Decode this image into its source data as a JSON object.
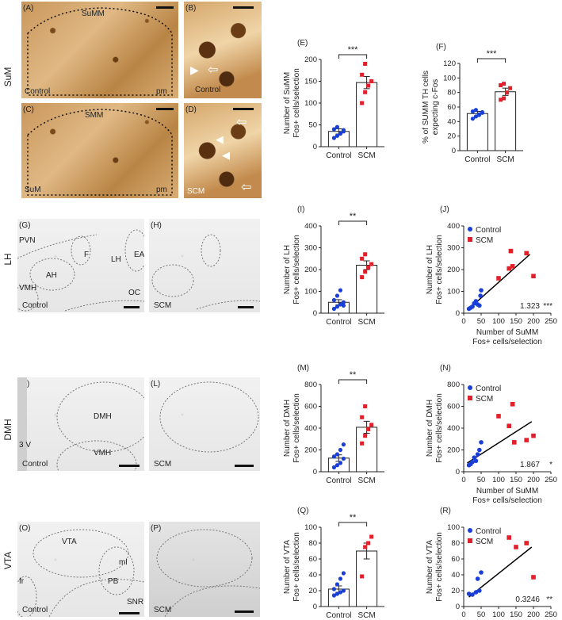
{
  "row_labels": {
    "suM": "SuM",
    "lh": "LH",
    "dmh": "DMH",
    "vta": "VTA"
  },
  "images": {
    "A": {
      "letter": "(A)",
      "labels": [
        "SuMM",
        "Control",
        "pm"
      ]
    },
    "B": {
      "letter": "(B)",
      "labels": [
        "Control"
      ]
    },
    "C": {
      "letter": "(C)",
      "labels": [
        "SMM",
        "SuM",
        "pm"
      ]
    },
    "D": {
      "letter": "(D)",
      "labels": [
        "SCM"
      ]
    },
    "G": {
      "letter": "(G)",
      "labels": [
        "PVN",
        "F",
        "LH",
        "EA",
        "AH",
        "VMH",
        "OC",
        "Control"
      ]
    },
    "H": {
      "letter": "(H)",
      "labels": [
        "SCM"
      ]
    },
    "K": {
      "letter": "(K)",
      "labels": [
        "DMH",
        "3 V",
        "VMH",
        "Control"
      ]
    },
    "L": {
      "letter": "(L)",
      "labels": [
        "SCM"
      ]
    },
    "O": {
      "letter": "(O)",
      "labels": [
        "VTA",
        "ml",
        "PB",
        "fr",
        "SNR",
        "Control"
      ]
    },
    "P": {
      "letter": "(P)",
      "labels": [
        "SCM"
      ]
    }
  },
  "colors": {
    "control": "#1a3fd6",
    "scm": "#e0202a",
    "line": "#000000"
  },
  "chart_data": [
    {
      "id": "E",
      "letter": "(E)",
      "type": "bar",
      "categories": [
        "Control",
        "SCM"
      ],
      "ylabel": [
        "Number of SuMM",
        "Fos+ cells/selection"
      ],
      "ylim": [
        0,
        200
      ],
      "yticks": [
        0,
        50,
        100,
        150,
        200
      ],
      "means": [
        35,
        147
      ],
      "sem": [
        6,
        14
      ],
      "sig": "***",
      "points": [
        [
          20,
          25,
          30,
          35,
          40,
          45,
          30,
          38
        ],
        [
          100,
          125,
          140,
          150,
          165,
          190
        ]
      ]
    },
    {
      "id": "F",
      "letter": "(F)",
      "type": "bar",
      "categories": [
        "Control",
        "SCM"
      ],
      "ylabel": [
        "% of SUMM TH cells",
        "expecting c-Fos"
      ],
      "ylim": [
        0,
        120
      ],
      "yticks": [
        0,
        20,
        40,
        60,
        80,
        100,
        120
      ],
      "means": [
        51,
        81
      ],
      "sem": [
        3,
        5
      ],
      "sig": "***",
      "points": [
        [
          44,
          47,
          50,
          52,
          54,
          56,
          49,
          53
        ],
        [
          70,
          72,
          80,
          86,
          90,
          92
        ]
      ]
    },
    {
      "id": "I",
      "letter": "(I)",
      "type": "bar",
      "categories": [
        "Control",
        "SCM"
      ],
      "ylabel": [
        "Number of LH",
        "Fos+ cells/selection"
      ],
      "ylim": [
        0,
        400
      ],
      "yticks": [
        0,
        100,
        200,
        300,
        400
      ],
      "means": [
        50,
        220
      ],
      "sem": [
        12,
        20
      ],
      "sig": "**",
      "points": [
        [
          20,
          30,
          40,
          50,
          60,
          80,
          105,
          35
        ],
        [
          165,
          190,
          210,
          225,
          250,
          270
        ]
      ]
    },
    {
      "id": "J",
      "letter": "(J)",
      "type": "scatter",
      "xlabel": [
        "Number of SuMM",
        "Fos+ cells/selection"
      ],
      "ylabel": [
        "Number of LH",
        "Fos+ cells/selection"
      ],
      "xlim": [
        0,
        250
      ],
      "ylim": [
        0,
        400
      ],
      "xticks": [
        0,
        50,
        100,
        150,
        200,
        250
      ],
      "yticks": [
        0,
        100,
        200,
        300,
        400
      ],
      "series": [
        {
          "name": "Control",
          "points": [
            [
              15,
              20
            ],
            [
              25,
              30
            ],
            [
              30,
              45
            ],
            [
              35,
              55
            ],
            [
              40,
              40
            ],
            [
              45,
              35
            ],
            [
              48,
              80
            ],
            [
              50,
              105
            ],
            [
              20,
              25
            ]
          ]
        },
        {
          "name": "SCM",
          "points": [
            [
              100,
              160
            ],
            [
              130,
              205
            ],
            [
              140,
              215
            ],
            [
              135,
              285
            ],
            [
              180,
              275
            ],
            [
              200,
              170
            ]
          ]
        }
      ],
      "fit": [
        [
          15,
          20
        ],
        [
          190,
          270
        ]
      ],
      "stat": "1.323",
      "sig": "***"
    },
    {
      "id": "M",
      "letter": "(M)",
      "type": "bar",
      "categories": [
        "Control",
        "SCM"
      ],
      "ylabel": [
        "Number of DMH",
        "Fos+ cells/selection"
      ],
      "ylim": [
        0,
        800
      ],
      "yticks": [
        0,
        200,
        400,
        600,
        800
      ],
      "means": [
        125,
        408
      ],
      "sem": [
        30,
        55
      ],
      "sig": "**",
      "points": [
        [
          40,
          60,
          80,
          120,
          140,
          160,
          200,
          250
        ],
        [
          260,
          330,
          390,
          430,
          500,
          600
        ]
      ]
    },
    {
      "id": "N",
      "letter": "(N)",
      "type": "scatter",
      "xlabel": [
        "Number of SuMM",
        "Fos+ cells/selection"
      ],
      "ylabel": [
        "Number of DMH",
        "Fos+ cells/selection"
      ],
      "xlim": [
        0,
        250
      ],
      "ylim": [
        0,
        800
      ],
      "xticks": [
        0,
        50,
        100,
        150,
        200,
        250
      ],
      "yticks": [
        0,
        200,
        400,
        600,
        800
      ],
      "series": [
        {
          "name": "Control",
          "points": [
            [
              15,
              60
            ],
            [
              25,
              90
            ],
            [
              30,
              130
            ],
            [
              35,
              100
            ],
            [
              40,
              160
            ],
            [
              45,
              200
            ],
            [
              50,
              270
            ],
            [
              20,
              70
            ]
          ]
        },
        {
          "name": "SCM",
          "points": [
            [
              100,
              510
            ],
            [
              130,
              420
            ],
            [
              140,
              620
            ],
            [
              145,
              270
            ],
            [
              180,
              290
            ],
            [
              200,
              330
            ]
          ]
        }
      ],
      "fit": [
        [
          10,
          80
        ],
        [
          195,
          460
        ]
      ],
      "stat": "1.867",
      "sig": "*"
    },
    {
      "id": "Q",
      "letter": "(Q)",
      "type": "bar",
      "categories": [
        "Control",
        "SCM"
      ],
      "ylabel": [
        "Number of VTA",
        "Fos+ cells/selection"
      ],
      "ylim": [
        0,
        100
      ],
      "yticks": [
        0,
        20,
        40,
        60,
        80,
        100
      ],
      "means": [
        22,
        70
      ],
      "sem": [
        4,
        10
      ],
      "sig": "**",
      "points": [
        [
          14,
          16,
          18,
          20,
          22,
          28,
          35,
          42
        ],
        [
          38,
          75,
          80,
          88
        ]
      ]
    },
    {
      "id": "R",
      "letter": "(R)",
      "type": "scatter",
      "xlabel": [
        "Number of SuMM",
        "Fos+ cells/selection"
      ],
      "ylabel": [
        "Number of VTA",
        "Fos+ cells/selection"
      ],
      "xlim": [
        0,
        250
      ],
      "ylim": [
        0,
        100
      ],
      "xticks": [
        0,
        50,
        100,
        150,
        200,
        250
      ],
      "yticks": [
        0,
        20,
        40,
        60,
        80,
        100
      ],
      "series": [
        {
          "name": "Control",
          "points": [
            [
              15,
              16
            ],
            [
              25,
              15
            ],
            [
              35,
              18
            ],
            [
              45,
              20
            ],
            [
              50,
              43
            ],
            [
              40,
              35
            ]
          ]
        },
        {
          "name": "SCM",
          "points": [
            [
              130,
              87
            ],
            [
              150,
              75
            ],
            [
              180,
              80
            ],
            [
              200,
              37
            ]
          ]
        }
      ],
      "fit": [
        [
          15,
          12
        ],
        [
          195,
          75
        ]
      ],
      "stat": "0.3246",
      "sig": "**"
    }
  ]
}
